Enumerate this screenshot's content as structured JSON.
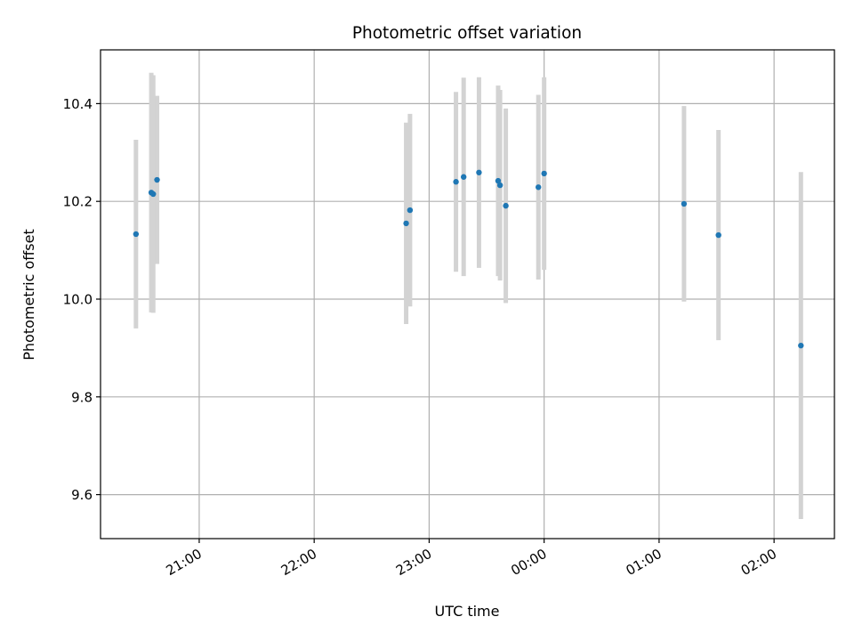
{
  "chart_data": {
    "type": "scatter",
    "title": "Photometric offset variation",
    "xlabel": "UTC time",
    "ylabel": "Photometric offset",
    "x_tick_labels": [
      "21:00",
      "22:00",
      "23:00",
      "00:00",
      "01:00",
      "02:00"
    ],
    "x_ticks_minutes_after_2100": [
      0,
      60,
      120,
      180,
      240,
      300
    ],
    "xlim_minutes_after_2100": [
      -51.5,
      331.5
    ],
    "ylim": [
      9.51,
      10.51
    ],
    "y_ticks": [
      9.6,
      9.8,
      10.0,
      10.2,
      10.4
    ],
    "y_tick_labels": [
      "9.6",
      "9.8",
      "10.0",
      "10.2",
      "10.4"
    ],
    "grid": true,
    "colors": {
      "points": "#1f77b4",
      "errorbars": "#d3d3d3",
      "grid": "#b0b0b0"
    },
    "points": [
      {
        "time": "20:27",
        "t": -33,
        "y": 10.133,
        "yerr": 0.193
      },
      {
        "time": "20:36",
        "t": -25,
        "y": 10.218,
        "yerr": 0.245
      },
      {
        "time": "20:36",
        "t": -24,
        "y": 10.215,
        "yerr": 0.243
      },
      {
        "time": "20:39",
        "t": -22,
        "y": 10.244,
        "yerr": 0.172
      },
      {
        "time": "22:48",
        "t": 108,
        "y": 10.155,
        "yerr": 0.206
      },
      {
        "time": "22:51",
        "t": 110,
        "y": 10.182,
        "yerr": 0.197
      },
      {
        "time": "23:14",
        "t": 134,
        "y": 10.24,
        "yerr": 0.184
      },
      {
        "time": "23:18",
        "t": 138,
        "y": 10.25,
        "yerr": 0.203
      },
      {
        "time": "23:26",
        "t": 146,
        "y": 10.259,
        "yerr": 0.195
      },
      {
        "time": "23:36",
        "t": 156,
        "y": 10.242,
        "yerr": 0.195
      },
      {
        "time": "23:37",
        "t": 157,
        "y": 10.233,
        "yerr": 0.195
      },
      {
        "time": "23:40",
        "t": 160,
        "y": 10.191,
        "yerr": 0.199
      },
      {
        "time": "23:57",
        "t": 177,
        "y": 10.229,
        "yerr": 0.189
      },
      {
        "time": "00:00",
        "t": 180,
        "y": 10.257,
        "yerr": 0.197
      },
      {
        "time": "01:13",
        "t": 253,
        "y": 10.195,
        "yerr": 0.2
      },
      {
        "time": "01:31",
        "t": 271,
        "y": 10.131,
        "yerr": 0.215
      },
      {
        "time": "02:14",
        "t": 314,
        "y": 9.905,
        "yerr": 0.355
      }
    ]
  }
}
